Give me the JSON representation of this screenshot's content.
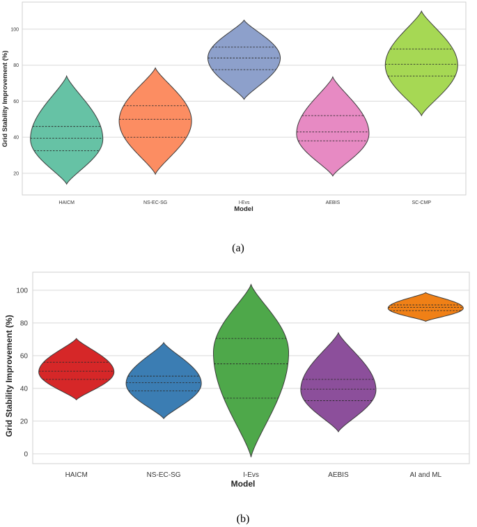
{
  "chart_data": [
    {
      "type": "violin",
      "caption": "(a)",
      "xlabel": "Model",
      "ylabel": "Grid Stability Improvement (%)",
      "categories": [
        "HAICM",
        "NS-EC-SG",
        "I-Evs",
        "AEBIS",
        "SC-CMP"
      ],
      "yticks": [
        20,
        40,
        60,
        80,
        100
      ],
      "ylim": [
        8,
        115
      ],
      "grid": true,
      "colors": [
        "#66c2a5",
        "#fc8d62",
        "#8da0cb",
        "#e78ac3",
        "#a6d854"
      ],
      "violins": [
        {
          "category": "HAICM",
          "min": 14,
          "max": 74,
          "q1": 32.5,
          "median": 39.5,
          "q3": 46,
          "center": 39
        },
        {
          "category": "NS-EC-SG",
          "min": 19.5,
          "max": 78.5,
          "q1": 40,
          "median": 50,
          "q3": 57.5,
          "center": 49
        },
        {
          "category": "I-Evs",
          "min": 61,
          "max": 105,
          "q1": 77.5,
          "median": 84,
          "q3": 90,
          "center": 84
        },
        {
          "category": "AEBIS",
          "min": 18.5,
          "max": 73.5,
          "q1": 38,
          "median": 43,
          "q3": 52,
          "center": 42
        },
        {
          "category": "SC-CMP",
          "min": 52,
          "max": 110,
          "q1": 74,
          "median": 80.5,
          "q3": 89,
          "center": 80
        }
      ]
    },
    {
      "type": "violin",
      "caption": "(b)",
      "xlabel": "Model",
      "ylabel": "Grid Stability Improvement (%)",
      "categories": [
        "HAICM",
        "NS-EC-SG",
        "I-Evs",
        "AEBIS",
        "AI and ML"
      ],
      "yticks": [
        0,
        20,
        40,
        60,
        80,
        100
      ],
      "ylim": [
        -6,
        111
      ],
      "grid": true,
      "colors": [
        "#d62728",
        "#3b7db3",
        "#4ea84a",
        "#8c4f9b",
        "#f08016"
      ],
      "violins": [
        {
          "category": "HAICM",
          "min": 33,
          "max": 70.5,
          "q1": 45.5,
          "median": 50.5,
          "q3": 56,
          "center": 50
        },
        {
          "category": "NS-EC-SG",
          "min": 21.5,
          "max": 68,
          "q1": 38.5,
          "median": 43.5,
          "q3": 47.5,
          "center": 43
        },
        {
          "category": "I-Evs",
          "min": -2,
          "max": 103.5,
          "q1": 34,
          "median": 55,
          "q3": 70.5,
          "center": 62
        },
        {
          "category": "AEBIS",
          "min": 13.5,
          "max": 74,
          "q1": 32.5,
          "median": 39.5,
          "q3": 45.5,
          "center": 39
        },
        {
          "category": "AI and ML",
          "min": 81,
          "max": 98.5,
          "q1": 87.5,
          "median": 89.5,
          "q3": 91,
          "center": 89
        }
      ]
    }
  ]
}
